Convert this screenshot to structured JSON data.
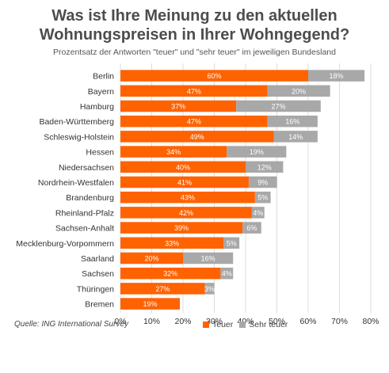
{
  "header": {
    "title_line1": "Was ist Ihre Meinung zu den aktuellen",
    "title_line2": "Wohnungspreisen in Ihrer Wohngegend?",
    "subtitle": "Prozentsatz der Antworten \"teuer\" und \"sehr teuer\" im jeweiligen Bundesland"
  },
  "source": "Quelle: ING International Survey",
  "colors": {
    "teuer": "#FF6200",
    "sehr_teuer": "#A8A8A8",
    "grid": "#dddddd",
    "text": "#333333"
  },
  "chart_data": {
    "type": "bar",
    "orientation": "horizontal",
    "stacked": true,
    "categories": [
      "Berlin",
      "Bayern",
      "Hamburg",
      "Baden-Württemberg",
      "Schleswig-Holstein",
      "Hessen",
      "Niedersachsen",
      "Nordrhein-Westfalen",
      "Brandenburg",
      "Rheinland-Pfalz",
      "Sachsen-Anhalt",
      "Mecklenburg-Vorpommern",
      "Saarland",
      "Sachsen",
      "Thüringen",
      "Bremen"
    ],
    "series": [
      {
        "name": "Teuer",
        "values": [
          60,
          47,
          37,
          47,
          49,
          34,
          40,
          41,
          43,
          42,
          39,
          33,
          20,
          32,
          27,
          19
        ]
      },
      {
        "name": "Sehr teuer",
        "values": [
          18,
          20,
          27,
          16,
          14,
          19,
          12,
          9,
          5,
          4,
          6,
          5,
          16,
          4,
          3,
          null
        ]
      }
    ],
    "value_labels": [
      [
        "60%",
        "18%"
      ],
      [
        "47%",
        "20%"
      ],
      [
        "37%",
        "27%"
      ],
      [
        "47%",
        "16%"
      ],
      [
        "49%",
        "14%"
      ],
      [
        "34%",
        "19%"
      ],
      [
        "40%",
        "12%"
      ],
      [
        "41%",
        "9%"
      ],
      [
        "43%",
        "5%"
      ],
      [
        "42%",
        "4%"
      ],
      [
        "39%",
        "6%"
      ],
      [
        "33%",
        "5%"
      ],
      [
        "20%",
        "16%"
      ],
      [
        "32%",
        "4%"
      ],
      [
        "27%",
        "3%"
      ],
      [
        "19%",
        ""
      ]
    ],
    "xlim": [
      0,
      80
    ],
    "xticks": [
      0,
      10,
      20,
      30,
      40,
      50,
      60,
      70,
      80
    ],
    "tick_labels": [
      "0%",
      "10%",
      "20%",
      "30%",
      "40%",
      "50%",
      "60%",
      "70%",
      "80%"
    ],
    "grid": true,
    "legend": "bottom-right"
  }
}
